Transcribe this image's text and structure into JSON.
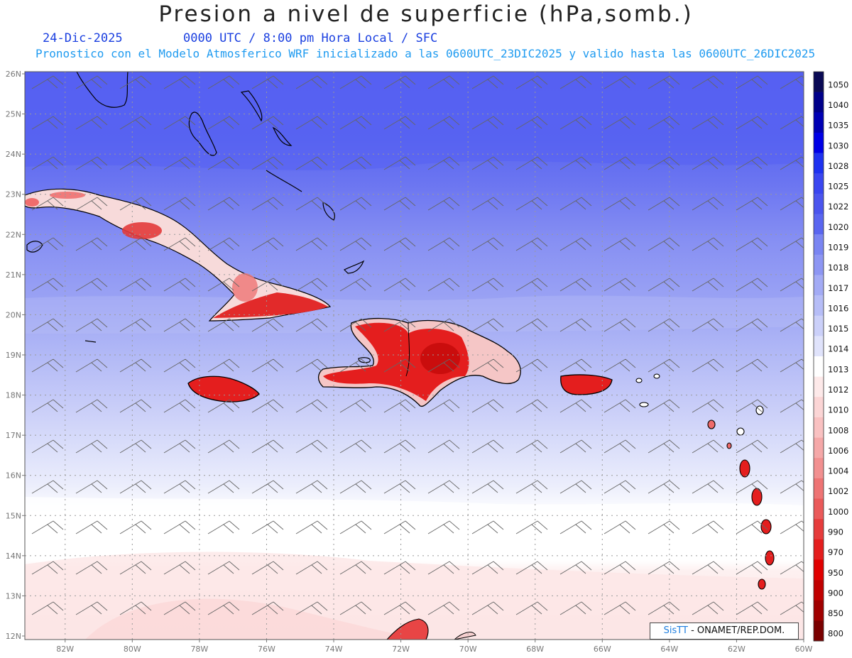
{
  "header": {
    "title": "Presion a nivel de superficie (hPa,somb.)",
    "date": "24-Dic-2025",
    "time": "0000 UTC / 8:00 pm Hora Local / SFC",
    "subtitle": "Pronostico con el Modelo Atmosferico WRF inicializado a las 0600UTC_23DIC2025 y valido hasta las  0600UTC_26DIC2025"
  },
  "map": {
    "lat_labels": [
      "26N",
      "25N",
      "24N",
      "23N",
      "22N",
      "21N",
      "20N",
      "19N",
      "18N",
      "17N",
      "16N",
      "15N",
      "14N",
      "13N",
      "12N"
    ],
    "lon_labels": [
      "82W",
      "80W",
      "78W",
      "76W",
      "74W",
      "72W",
      "70W",
      "68W",
      "66W",
      "64W",
      "62W",
      "60W"
    ],
    "lat_range": [
      12,
      26
    ],
    "lon_range": [
      -83.2,
      -60
    ]
  },
  "colorbar": {
    "levels": [
      "1050",
      "1040",
      "1035",
      "1030",
      "1028",
      "1025",
      "1022",
      "1020",
      "1019",
      "1018",
      "1017",
      "1016",
      "1015",
      "1014",
      "1013",
      "1012",
      "1010",
      "1008",
      "1006",
      "1004",
      "1002",
      "1000",
      "990",
      "970",
      "950",
      "900",
      "850",
      "800"
    ],
    "colors": [
      "#0a0a55",
      "#00008a",
      "#0000b4",
      "#0000e6",
      "#1e32f0",
      "#3a46f0",
      "#4b55ee",
      "#5a66f0",
      "#7a85f2",
      "#8d96f3",
      "#a3abf5",
      "#b6bdf7",
      "#cbd0f9",
      "#e0e3fb",
      "#ffffff",
      "#fde9e9",
      "#fbd5d5",
      "#f9c1c1",
      "#f5a8a8",
      "#f29090",
      "#ee7474",
      "#ea5a5a",
      "#e63c3c",
      "#e41e1e",
      "#e00000",
      "#c00000",
      "#a00000",
      "#7a0000"
    ]
  },
  "credit": {
    "brand": "SisTT",
    "text": " - ONAMET/REP.DOM."
  }
}
